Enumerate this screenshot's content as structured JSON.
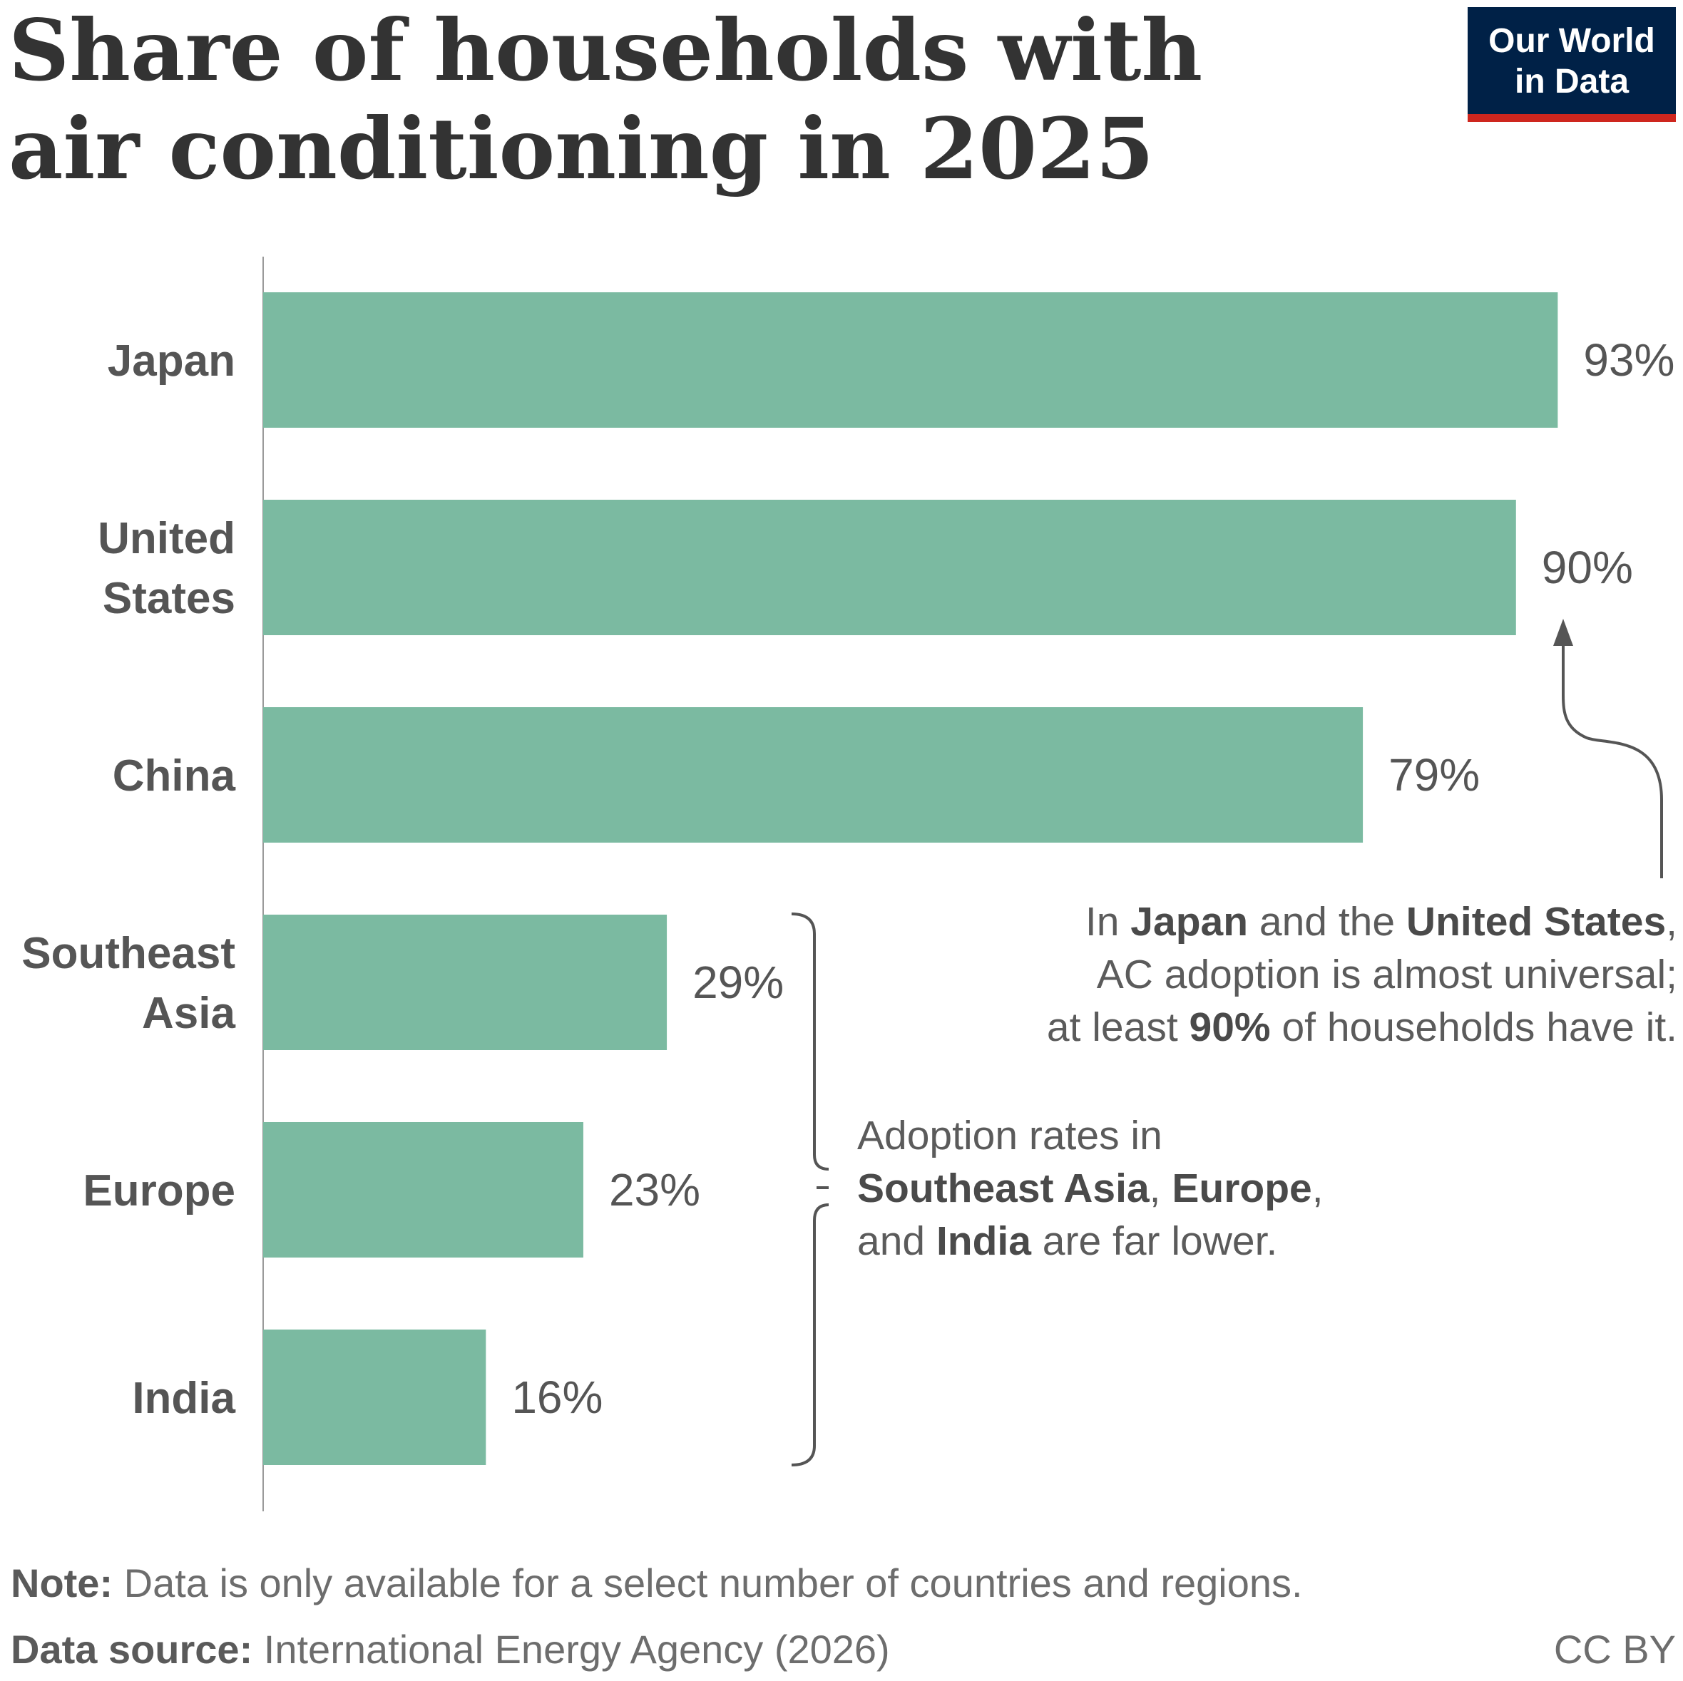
{
  "chart_data": {
    "type": "bar",
    "orientation": "horizontal",
    "title": "Share of households with air conditioning in 2025",
    "title_lines": [
      "Share of households with",
      "air conditioning in 2025"
    ],
    "categories": [
      "Japan",
      "United States",
      "China",
      "Southeast Asia",
      "Europe",
      "India"
    ],
    "category_lines": [
      [
        "Japan"
      ],
      [
        "United",
        "States"
      ],
      [
        "China"
      ],
      [
        "Southeast",
        "Asia"
      ],
      [
        "Europe"
      ],
      [
        "India"
      ]
    ],
    "values": [
      93,
      90,
      79,
      29,
      23,
      16
    ],
    "value_labels": [
      "93%",
      "90%",
      "79%",
      "29%",
      "23%",
      "16%"
    ],
    "xlim": [
      0,
      100
    ],
    "grid": false,
    "bar_color": "#7bbaa1",
    "annotations": {
      "high": [
        [
          {
            "t": "In "
          },
          {
            "t": "Japan",
            "b": true
          },
          {
            "t": " and the "
          },
          {
            "t": "United States",
            "b": true
          },
          {
            "t": ","
          }
        ],
        [
          {
            "t": "AC adoption is almost universal;"
          }
        ],
        [
          {
            "t": "at least "
          },
          {
            "t": "90%",
            "b": true
          },
          {
            "t": " of households have it."
          }
        ]
      ],
      "low": [
        [
          {
            "t": "Adoption rates in"
          }
        ],
        [
          {
            "t": "Southeast Asia",
            "b": true
          },
          {
            "t": ", "
          },
          {
            "t": "Europe",
            "b": true
          },
          {
            "t": ","
          }
        ],
        [
          {
            "t": "and "
          },
          {
            "t": "India",
            "b": true
          },
          {
            "t": " are far lower."
          }
        ]
      ]
    }
  },
  "logo": {
    "line1": "Our World",
    "line2": "in Data",
    "bg_color": "#002147",
    "accent_color": "#ce261e"
  },
  "footer": {
    "note_label": "Note:",
    "note_text": " Data is only available for a select number of countries and regions.",
    "source_label": "Data source:",
    "source_text": " International Energy Agency (2026)",
    "license": "CC BY"
  }
}
